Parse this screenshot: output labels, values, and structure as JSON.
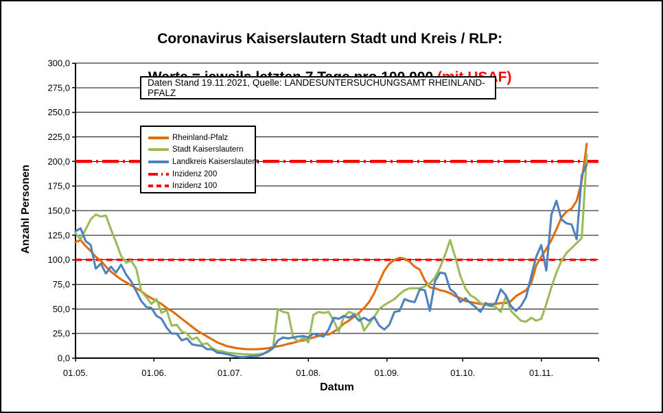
{
  "title": {
    "line1": "Coronavirus Kaiserslautern Stadt und Kreis / RLP:",
    "line2": "Werte = jeweils letzten 7 Tage pro 100.000 ",
    "line2_highlight": "(mit USAF)",
    "highlight_color": "#FF0000"
  },
  "annotation_box": {
    "text": "Daten Stand 19.11.2021, Quelle: LANDESUNTERSUCHUNGSAMT RHEINLAND-PFALZ"
  },
  "chart_data": {
    "type": "line",
    "title": "Coronavirus Kaiserslautern Stadt und Kreis / RLP: Werte = jeweils letzten 7 Tage pro 100.000 (mit USAF)",
    "xlabel": "Datum",
    "ylabel": "Anzahl Personen",
    "ylim": [
      0,
      300
    ],
    "ytick_values": [
      0,
      25,
      50,
      75,
      100,
      125,
      150,
      175,
      200,
      225,
      250,
      275,
      300
    ],
    "ytick_labels": [
      "0,0",
      "25,0",
      "50,0",
      "75,0",
      "100,0",
      "125,0",
      "150,0",
      "175,0",
      "200,0",
      "225,0",
      "250,0",
      "275,0",
      "300,0"
    ],
    "xticks": [
      {
        "label": "01.05.",
        "day": 0
      },
      {
        "label": "01.06.",
        "day": 31
      },
      {
        "label": "01.07.",
        "day": 61
      },
      {
        "label": "01.08.",
        "day": 92
      },
      {
        "label": "01.09.",
        "day": 123
      },
      {
        "label": "01.10.",
        "day": 153
      },
      {
        "label": "01.11.",
        "day": 184
      }
    ],
    "x_span_days": 202,
    "x_start_label": "01.05.",
    "x_end_label": "19.11.2021",
    "sample_interval_days": 2,
    "grid": "horizontal",
    "legend_position": "inside-upper-left",
    "series": [
      {
        "name": "Rheinland-Pfalz",
        "color": "#E36C09",
        "values": [
          118,
          120,
          114,
          109,
          103,
          99,
          93,
          88,
          84,
          80,
          77,
          74,
          71,
          68,
          64,
          61,
          58,
          55,
          51,
          48,
          44,
          40,
          36,
          32,
          28,
          25,
          22,
          19,
          16,
          14,
          12,
          11,
          10,
          9.5,
          9,
          9,
          9,
          9.5,
          10,
          11,
          12,
          13,
          14.5,
          15.5,
          17,
          18,
          19.5,
          21,
          22.5,
          24,
          24,
          27,
          30,
          35,
          38,
          42,
          46,
          51,
          57,
          66,
          78,
          89,
          96,
          100,
          102,
          101,
          98,
          93,
          90,
          79,
          72,
          71,
          69,
          68,
          66,
          63,
          61,
          58,
          57,
          56,
          55,
          55,
          55,
          55,
          56,
          56,
          58,
          63,
          66,
          69,
          76,
          94,
          103,
          111,
          120,
          131,
          143,
          149,
          152,
          160,
          180,
          218
        ]
      },
      {
        "name": "Stadt Kaiserslautern",
        "color": "#9BBB59",
        "values": [
          127,
          121,
          131,
          141,
          146,
          144,
          145,
          131,
          118,
          104,
          97,
          99,
          91,
          68,
          62,
          55,
          60,
          46,
          49,
          33,
          34,
          27,
          25,
          19,
          21,
          14,
          15,
          10,
          7.5,
          7,
          5.5,
          5,
          4.5,
          4,
          4,
          3.5,
          4,
          4.5,
          6,
          10,
          50,
          47,
          46,
          21,
          17,
          21,
          16,
          44,
          47,
          46,
          47,
          38,
          27,
          42,
          47,
          45,
          44,
          28,
          35,
          42,
          50,
          54,
          57,
          60,
          65,
          69,
          71,
          71,
          71,
          73,
          76,
          82,
          92,
          105,
          120,
          103,
          84,
          71,
          64,
          61,
          56,
          54,
          53,
          52,
          47,
          63,
          48,
          43,
          38,
          37,
          41,
          38,
          40,
          55,
          72,
          87,
          99,
          107,
          112,
          117,
          122,
          207
        ]
      },
      {
        "name": "Landkreis Kaiserslautern",
        "color": "#4F81BD",
        "values": [
          129,
          132,
          119,
          115,
          91,
          96,
          86,
          93,
          87,
          95,
          85,
          78,
          68,
          58,
          52,
          51,
          43,
          40,
          31,
          25,
          25,
          18,
          20,
          14,
          13,
          12.5,
          9,
          9,
          5.5,
          5,
          4,
          2.5,
          1.5,
          1,
          1.5,
          2,
          2,
          4,
          7,
          10,
          18,
          21,
          20,
          21,
          22,
          22.5,
          21,
          25,
          23,
          22,
          29,
          41,
          40,
          43,
          41,
          44,
          38,
          41,
          38,
          42,
          33,
          29,
          34,
          47,
          48,
          60,
          58,
          57,
          70,
          69,
          48,
          78,
          87,
          86,
          70,
          66,
          57,
          61,
          56,
          52,
          47,
          56,
          53,
          56,
          70,
          64,
          53,
          48,
          53,
          62,
          83,
          103,
          115,
          89,
          146,
          160,
          141,
          137,
          136,
          121,
          186,
          197
        ]
      }
    ],
    "reference_lines": [
      {
        "name": "Inzidenz 200",
        "value": 200,
        "color": "#FF0000",
        "dash": "long-dash-dot"
      },
      {
        "name": "Inzidenz 100",
        "value": 100,
        "color": "#FF0000",
        "dash": "dash"
      }
    ]
  }
}
